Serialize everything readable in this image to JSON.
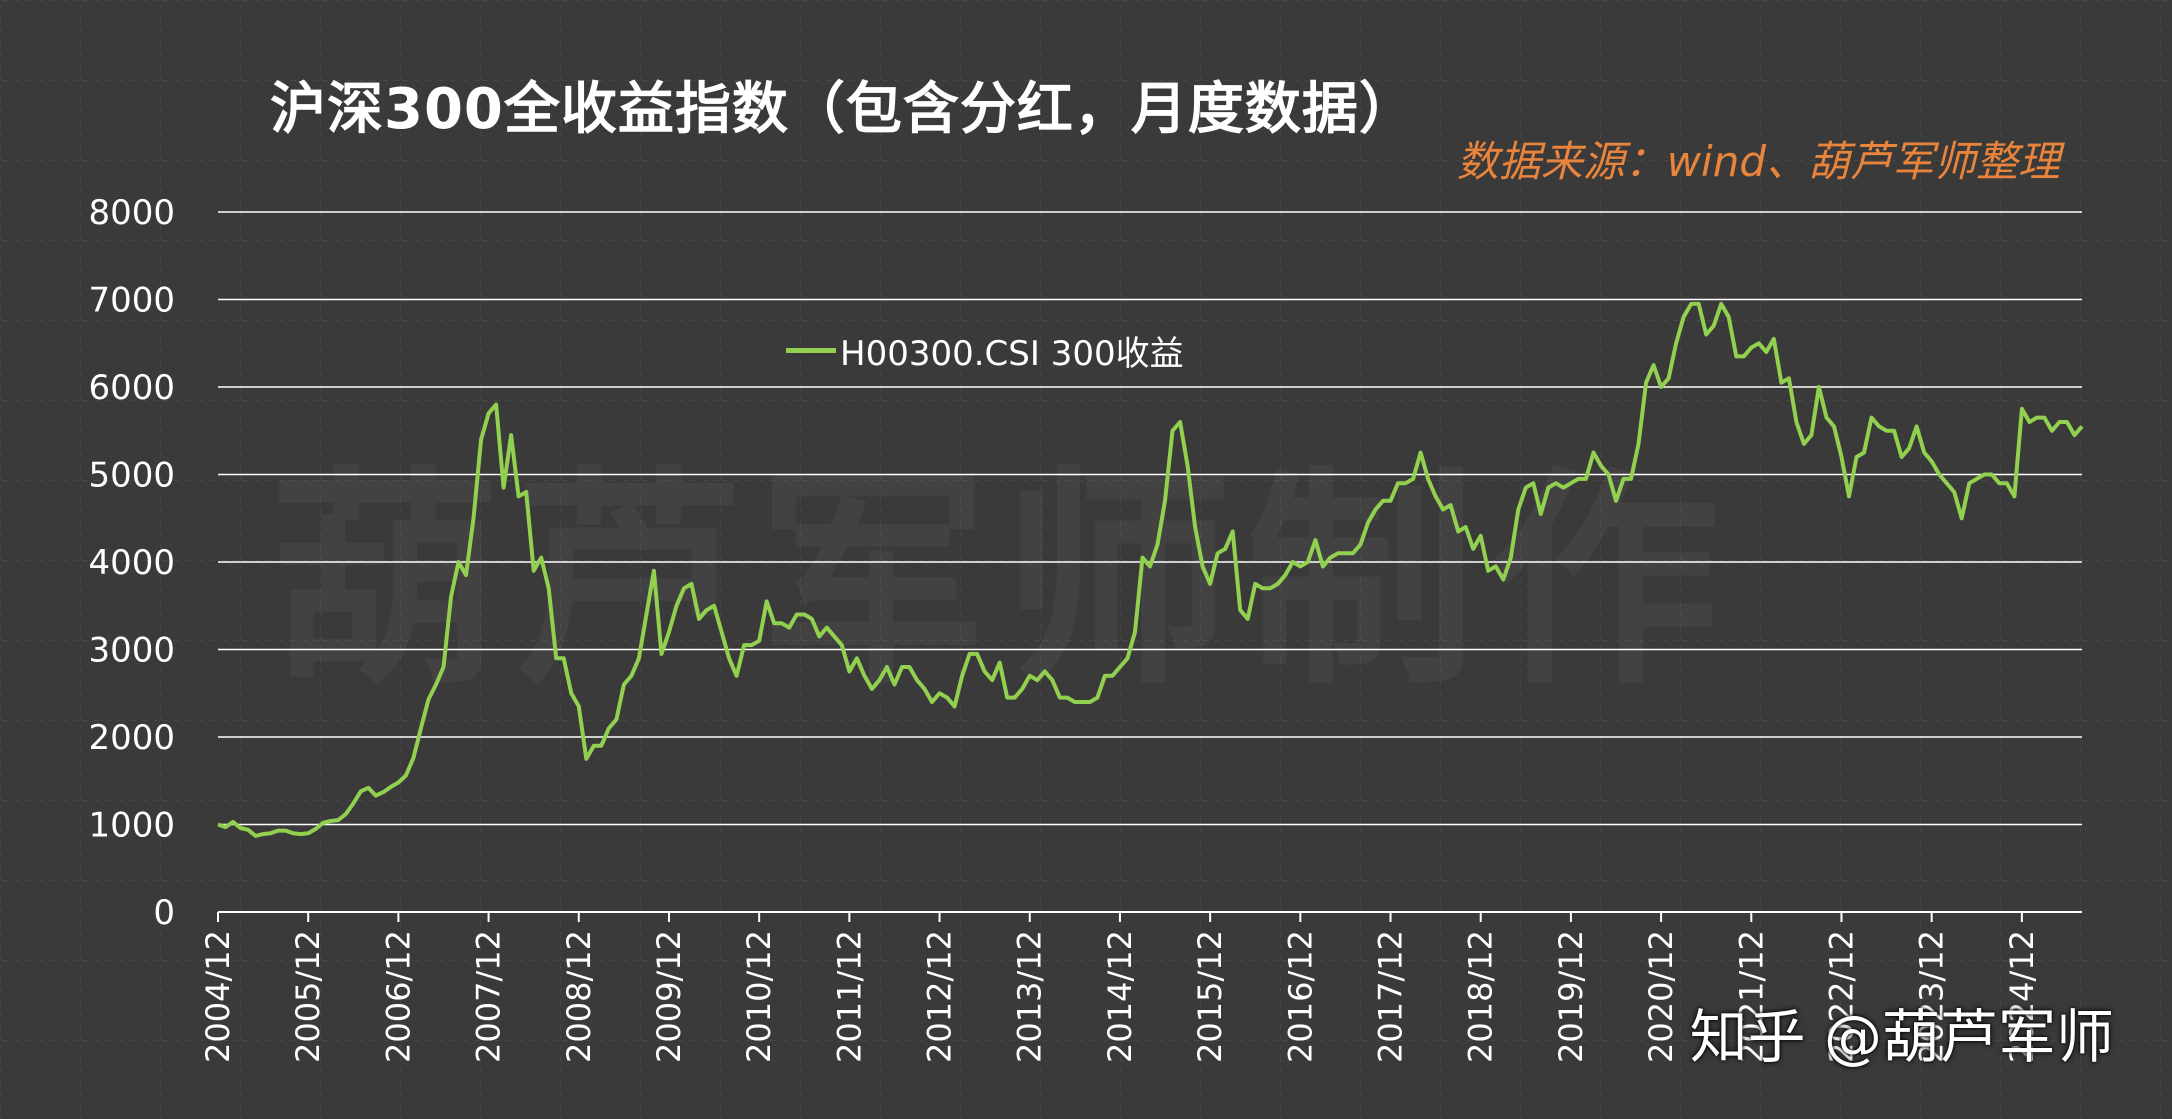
{
  "chart_data": {
    "type": "line",
    "title": "沪深300全收益指数（包含分红，月度数据）",
    "source": "数据来源：wind、葫芦军师整理",
    "watermark": "葫芦军师制作",
    "credit": "知乎 @葫芦军师",
    "ylim": [
      0,
      8000
    ],
    "yticks": [
      0,
      1000,
      2000,
      3000,
      4000,
      5000,
      6000,
      7000,
      8000
    ],
    "xticks": [
      "2004/12",
      "2005/12",
      "2006/12",
      "2007/12",
      "2008/12",
      "2009/12",
      "2010/12",
      "2011/12",
      "2012/12",
      "2013/12",
      "2014/12",
      "2015/12",
      "2016/12",
      "2017/12",
      "2018/12",
      "2019/12",
      "2020/12",
      "2021/12",
      "2022/12",
      "2023/12",
      "2024/12"
    ],
    "grid": true,
    "legend_position": "top-left",
    "line_color": "#92d050",
    "series": [
      {
        "name": "H00300.CSI 300收益",
        "x_start": "2004/12",
        "x_step": "1 month",
        "values": [
          1000,
          970,
          1030,
          960,
          940,
          870,
          890,
          900,
          930,
          930,
          900,
          890,
          900,
          950,
          1020,
          1040,
          1050,
          1120,
          1240,
          1380,
          1420,
          1330,
          1370,
          1430,
          1480,
          1560,
          1760,
          2100,
          2430,
          2600,
          2800,
          3600,
          4000,
          3850,
          4500,
          5400,
          5700,
          5800,
          4850,
          5450,
          4750,
          4800,
          3900,
          4050,
          3700,
          2900,
          2900,
          2500,
          2350,
          1750,
          1900,
          1900,
          2100,
          2200,
          2600,
          2700,
          2900,
          3400,
          3900,
          2950,
          3200,
          3500,
          3700,
          3750,
          3350,
          3450,
          3500,
          3200,
          2900,
          2700,
          3050,
          3050,
          3100,
          3550,
          3300,
          3300,
          3250,
          3400,
          3400,
          3350,
          3150,
          3250,
          3150,
          3050,
          2750,
          2900,
          2700,
          2550,
          2650,
          2800,
          2600,
          2800,
          2800,
          2650,
          2550,
          2400,
          2500,
          2450,
          2350,
          2700,
          2950,
          2950,
          2750,
          2650,
          2850,
          2450,
          2450,
          2550,
          2700,
          2650,
          2750,
          2650,
          2450,
          2450,
          2400,
          2400,
          2400,
          2450,
          2700,
          2700,
          2800,
          2900,
          3200,
          4050,
          3950,
          4200,
          4700,
          5500,
          5600,
          5100,
          4400,
          3950,
          3750,
          4100,
          4150,
          4350,
          3450,
          3350,
          3750,
          3700,
          3700,
          3750,
          3850,
          4000,
          3950,
          4000,
          4250,
          3950,
          4050,
          4100,
          4100,
          4100,
          4200,
          4450,
          4600,
          4700,
          4700,
          4900,
          4900,
          4950,
          5250,
          4950,
          4750,
          4600,
          4650,
          4350,
          4400,
          4150,
          4300,
          3900,
          3950,
          3800,
          4050,
          4600,
          4850,
          4900,
          4550,
          4850,
          4900,
          4850,
          4900,
          4950,
          4950,
          5250,
          5100,
          5000,
          4700,
          4950,
          4950,
          5350,
          6050,
          6250,
          6000,
          6100,
          6500,
          6800,
          6950,
          6950,
          6600,
          6700,
          6950,
          6800,
          6350,
          6350,
          6450,
          6500,
          6400,
          6550,
          6050,
          6100,
          5600,
          5350,
          5450,
          6000,
          5650,
          5550,
          5200,
          4750,
          5200,
          5250,
          5650,
          5550,
          5500,
          5500,
          5200,
          5300,
          5550,
          5250,
          5150,
          5000,
          4900,
          4800,
          4500,
          4900,
          4950,
          5000,
          5000,
          4900,
          4900,
          4750,
          5750,
          5600,
          5650,
          5650,
          5500,
          5600,
          5600,
          5450,
          5550
        ]
      }
    ]
  }
}
